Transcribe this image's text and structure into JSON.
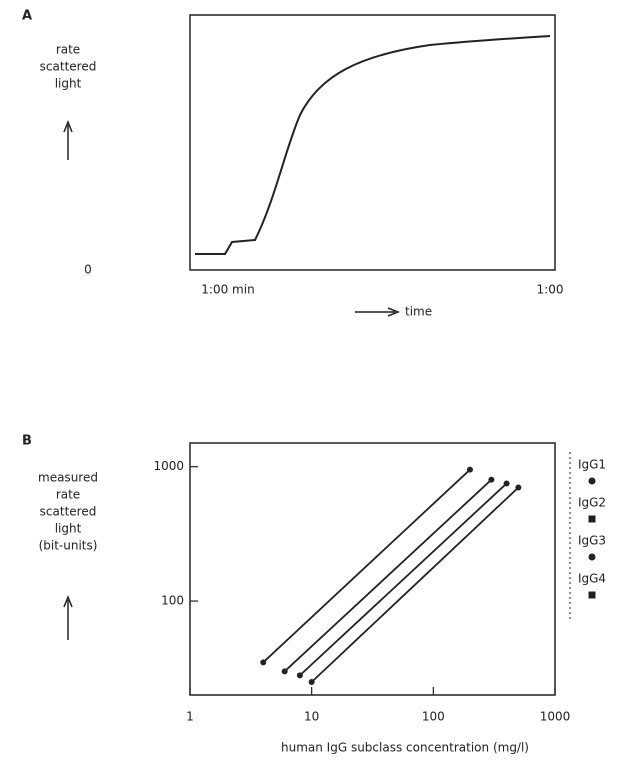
{
  "chart_data": [
    {
      "type": "curve",
      "panel": "A",
      "ylabel": [
        "rate",
        "scattered",
        "light"
      ],
      "xlabel": "time",
      "x_tick_labels": [
        "1:00 min",
        "1:00"
      ]
    },
    {
      "type": "line",
      "panel": "B",
      "ylabel": [
        "measured",
        "rate",
        "scattered",
        "light",
        "(bit-units)"
      ],
      "xlabel": "human IgG subclass concentration (mg/l)",
      "xscale": "log",
      "yscale": "log",
      "xlim": [
        1,
        1000
      ],
      "ylim": [
        20,
        1500
      ],
      "xticks": [
        1,
        10,
        100,
        1000
      ],
      "yticks": [
        100,
        1000
      ],
      "series": [
        {
          "name": "IgG1",
          "color": "#222222",
          "x": [
            4,
            200
          ],
          "values": [
            35,
            950
          ]
        },
        {
          "name": "IgG2",
          "color": "#222222",
          "x": [
            6,
            300
          ],
          "values": [
            30,
            800
          ]
        },
        {
          "name": "IgG3",
          "color": "#222222",
          "x": [
            8,
            400
          ],
          "values": [
            28,
            750
          ]
        },
        {
          "name": "IgG4",
          "color": "#222222",
          "x": [
            10,
            500
          ],
          "values": [
            25,
            700
          ]
        }
      ]
    }
  ]
}
